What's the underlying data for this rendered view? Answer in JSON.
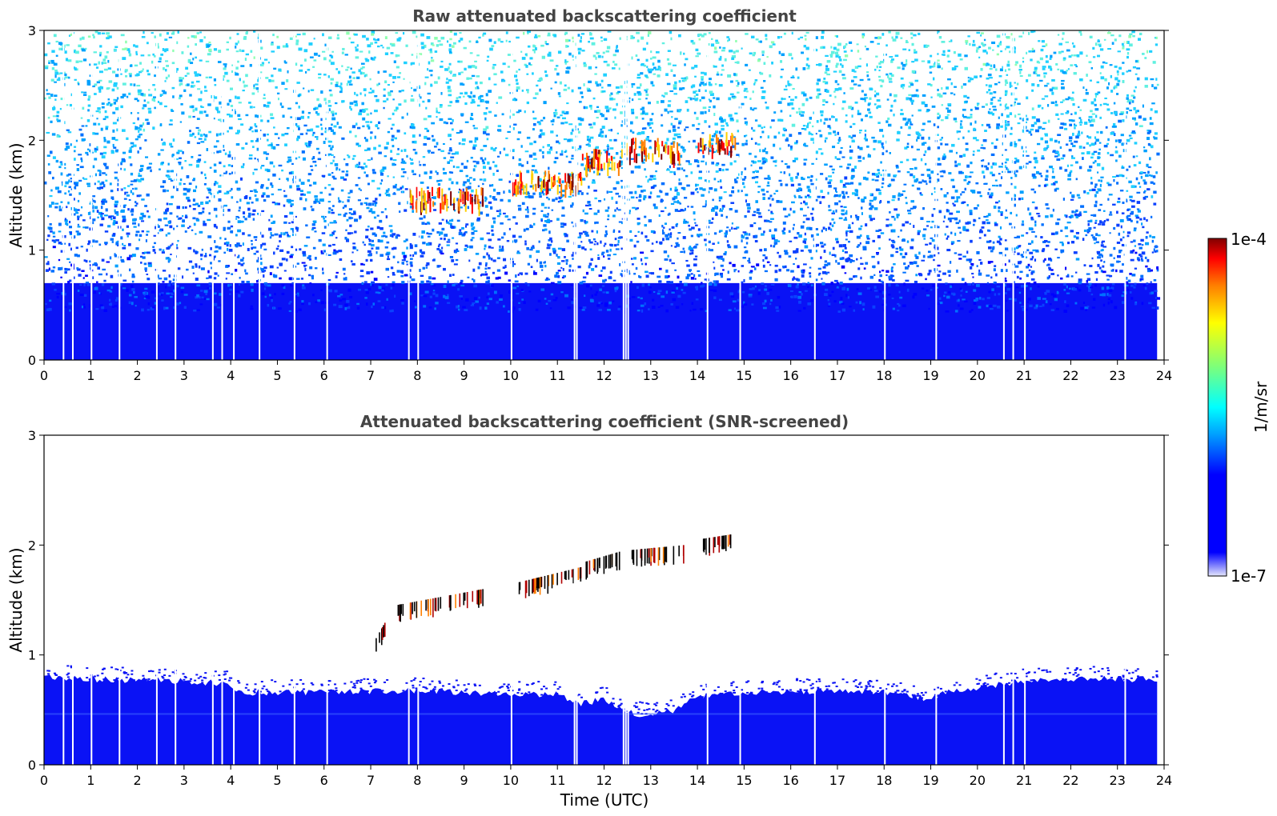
{
  "chart_data": [
    {
      "type": "heatmap",
      "title": "Raw attenuated backscattering coefficient",
      "xlabel": "",
      "ylabel": "Altitude (km)",
      "xlim": [
        0,
        24
      ],
      "ylim": [
        0,
        3
      ],
      "x_ticks": [
        "0",
        "1",
        "2",
        "3",
        "4",
        "5",
        "6",
        "7",
        "8",
        "9",
        "10",
        "11",
        "12",
        "13",
        "14",
        "15",
        "16",
        "17",
        "18",
        "19",
        "20",
        "21",
        "22",
        "23",
        "24"
      ],
      "y_ticks": [
        "0",
        "1",
        "2",
        "3"
      ],
      "data_end_time": 23.85,
      "noise": "raw, unscreened: dense blue below ~0.7 km, noisy blue/cyan speckle increasing with altitude up to 3 km",
      "gaps": [
        0.4,
        0.6,
        1.0,
        1.6,
        2.4,
        2.8,
        3.6,
        3.8,
        4.05,
        4.6,
        5.35,
        6.05,
        7.8,
        8.0,
        10.0,
        11.35,
        11.4,
        12.4,
        12.45,
        12.5,
        14.2,
        14.9,
        16.5,
        18.0,
        19.1,
        20.55,
        20.75,
        21.0,
        23.15
      ],
      "layers": [
        {
          "name": "",
          "t_start": 7.8,
          "t_end": 9.4,
          "alt_km": 1.45,
          "note": "sparse high values"
        },
        {
          "name": "",
          "t_start": 10.0,
          "t_end": 11.5,
          "alt_km": 1.6
        },
        {
          "name": "",
          "t_start": 11.5,
          "t_end": 12.4,
          "alt_km": 1.8
        },
        {
          "name": "",
          "t_start": 12.45,
          "t_end": 13.6,
          "alt_km": 1.9,
          "note": "dense, up to 1e-4"
        },
        {
          "name": "",
          "t_start": 14.0,
          "t_end": 14.8,
          "alt_km": 1.95
        }
      ]
    },
    {
      "type": "heatmap",
      "title": "Attenuated backscattering coefficient (SNR-screened)",
      "xlabel": "Time (UTC)",
      "ylabel": "Altitude (km)",
      "xlim": [
        0,
        24
      ],
      "ylim": [
        0,
        3
      ],
      "x_ticks": [
        "0",
        "1",
        "2",
        "3",
        "4",
        "5",
        "6",
        "7",
        "8",
        "9",
        "10",
        "11",
        "12",
        "13",
        "14",
        "15",
        "16",
        "17",
        "18",
        "19",
        "20",
        "21",
        "22",
        "23",
        "24"
      ],
      "y_ticks": [
        "0",
        "1",
        "2",
        "3"
      ],
      "data_end_time": 23.85,
      "boundary_layer_top_km": [
        [
          0,
          0.8
        ],
        [
          1,
          0.78
        ],
        [
          2,
          0.77
        ],
        [
          3,
          0.76
        ],
        [
          3.9,
          0.74
        ],
        [
          4.2,
          0.66
        ],
        [
          5,
          0.66
        ],
        [
          6,
          0.66
        ],
        [
          7,
          0.67
        ],
        [
          8,
          0.68
        ],
        [
          9,
          0.66
        ],
        [
          10,
          0.65
        ],
        [
          11,
          0.64
        ],
        [
          11.5,
          0.55
        ],
        [
          12,
          0.6
        ],
        [
          12.4,
          0.48
        ],
        [
          13,
          0.45
        ],
        [
          13.5,
          0.5
        ],
        [
          14,
          0.62
        ],
        [
          15,
          0.66
        ],
        [
          16,
          0.67
        ],
        [
          17,
          0.67
        ],
        [
          18,
          0.66
        ],
        [
          19,
          0.6
        ],
        [
          19.5,
          0.68
        ],
        [
          20,
          0.7
        ],
        [
          21,
          0.76
        ],
        [
          22,
          0.78
        ],
        [
          23,
          0.78
        ],
        [
          23.85,
          0.78
        ]
      ],
      "gaps": [
        0.4,
        0.6,
        1.0,
        1.6,
        2.4,
        2.8,
        3.6,
        3.8,
        4.05,
        4.6,
        5.35,
        6.05,
        7.8,
        8.0,
        10.0,
        11.35,
        11.4,
        12.4,
        12.45,
        12.5,
        14.2,
        14.9,
        16.5,
        18.0,
        19.1,
        20.55,
        20.75,
        21.0,
        23.15
      ],
      "layers": [
        {
          "name": "",
          "t_start": 7.1,
          "t_end": 7.3,
          "alt_km_start": 1.05,
          "alt_km_end": 1.2
        },
        {
          "name": "",
          "t_start": 7.5,
          "t_end": 9.4,
          "alt_km_start": 1.35,
          "alt_km_end": 1.5
        },
        {
          "name": "",
          "t_start": 10.05,
          "t_end": 11.5,
          "alt_km_start": 1.55,
          "alt_km_end": 1.7
        },
        {
          "name": "",
          "t_start": 11.6,
          "t_end": 12.4,
          "alt_km_start": 1.75,
          "alt_km_end": 1.85
        },
        {
          "name": "",
          "t_start": 12.45,
          "t_end": 13.7,
          "alt_km_start": 1.85,
          "alt_km_end": 1.9
        },
        {
          "name": "",
          "t_start": 14.0,
          "t_end": 14.75,
          "alt_km_start": 1.95,
          "alt_km_end": 2.0
        }
      ]
    }
  ],
  "colorbar": {
    "label": "1/m/sr",
    "max_label": "1e-4",
    "min_label": "1e-7",
    "scale": "log",
    "range": [
      1e-07,
      0.0001
    ],
    "colormap": "jet",
    "colors": [
      "#e4e6fb",
      "#0000ff",
      "#00a0ff",
      "#00ffff",
      "#7dff7a",
      "#ffff00",
      "#ff7f00",
      "#ff0000",
      "#800000"
    ]
  }
}
